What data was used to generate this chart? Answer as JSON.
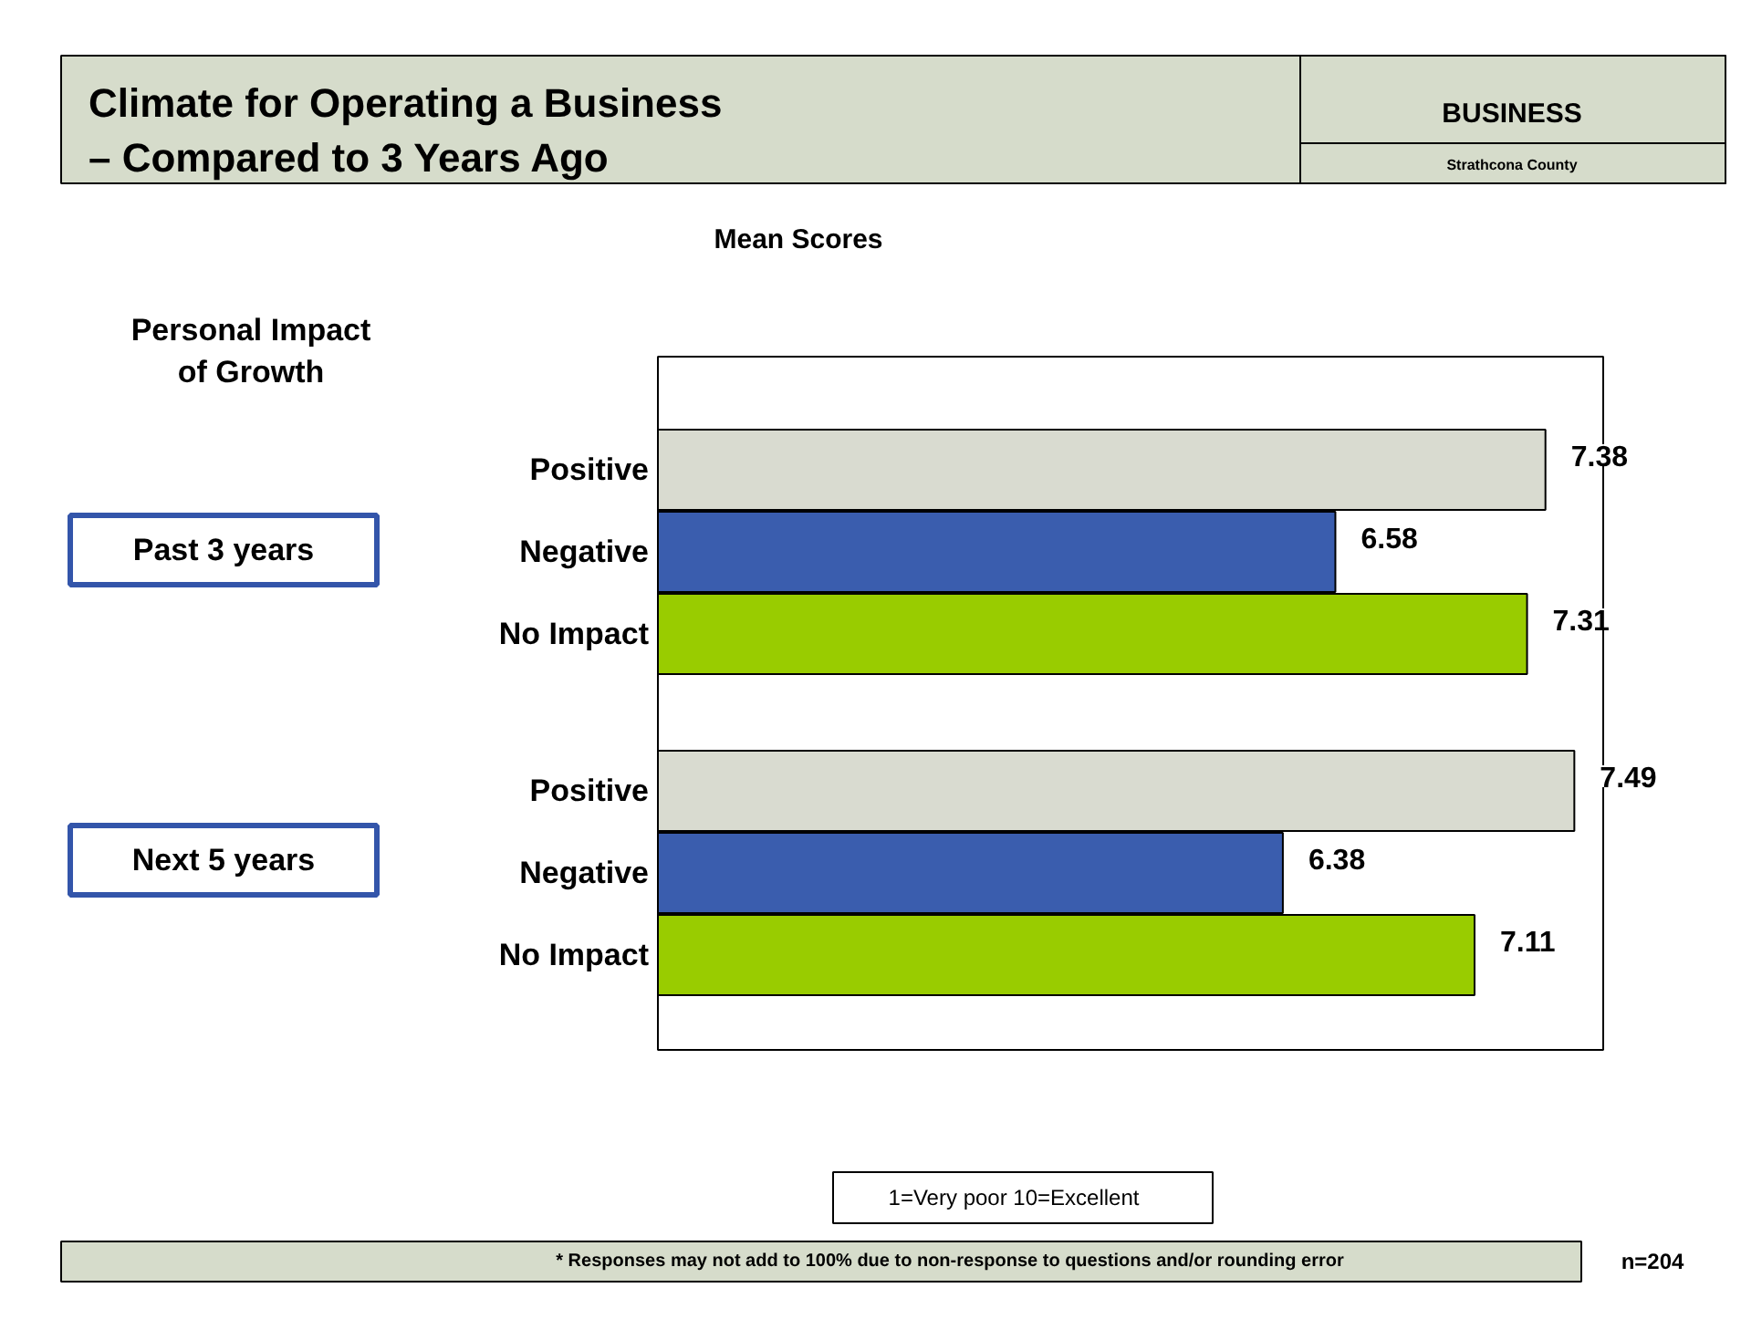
{
  "chart_data": {
    "type": "bar",
    "orientation": "horizontal",
    "title": "Climate for Operating a Business\n– Compared to 3 Years Ago",
    "subtitle": "Mean Scores",
    "ylabel": "Personal Impact\nof Growth",
    "categories": [
      "Positive",
      "Negative",
      "No Impact",
      "Positive",
      "Negative",
      "No Impact"
    ],
    "values": [
      7.38,
      6.58,
      7.31,
      7.49,
      6.38,
      7.11
    ],
    "colors": [
      "#d9dbd0",
      "#3a5dae",
      "#99cc00",
      "#d9dbd0",
      "#3a5dae",
      "#99cc00"
    ],
    "xlim": [
      4,
      7.6
    ],
    "data_labels": true,
    "annotations": [
      "BUSINESS",
      "Strathcona County",
      "Past 3 years",
      "Next 5 years",
      "1=Very poor    10=Excellent",
      "* Responses may not add to 100% due to non-response to questions and/or rounding error",
      "n=204"
    ]
  }
}
